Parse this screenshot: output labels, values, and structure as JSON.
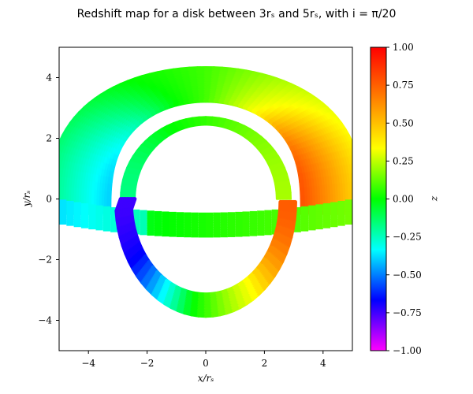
{
  "chart_data": {
    "type": "scatter",
    "title": "Redshift map for a disk between 3rₛ and 5rₛ, with i = π/20",
    "xlabel": "x/rₛ",
    "ylabel": "y/rₛ",
    "xlim": [
      -5,
      5
    ],
    "ylim": [
      -5,
      5
    ],
    "xticks": [
      -4,
      -2,
      0,
      2,
      4
    ],
    "yticks": [
      -4,
      -2,
      0,
      2,
      4
    ],
    "xtick_labels": [
      "−4",
      "−2",
      "0",
      "2",
      "4"
    ],
    "ytick_labels": [
      "−4",
      "−2",
      "0",
      "2",
      "4"
    ],
    "grid": false,
    "colorbar": {
      "label": "z",
      "range": [
        -1.0,
        1.0
      ],
      "ticks": [
        1.0,
        0.75,
        0.5,
        0.25,
        0.0,
        -0.25,
        -0.5,
        -0.75,
        -1.0
      ],
      "tick_labels": [
        "1.00",
        "0.75",
        "0.50",
        "0.25",
        "0.00",
        "−0.25",
        "−0.50",
        "−0.75",
        "−1.00"
      ],
      "colormap": "hsv",
      "stops": [
        {
          "value": -1.0,
          "color": "#ff00ff"
        },
        {
          "value": -0.5,
          "color": "#0000ff"
        },
        {
          "value": -0.25,
          "color": "#00ffff"
        },
        {
          "value": 0.0,
          "color": "#00ff00"
        },
        {
          "value": 0.5,
          "color": "#ffff00"
        },
        {
          "value": 1.0,
          "color": "#ff0000"
        }
      ]
    },
    "disk": {
      "inner_radius": 3,
      "outer_radius": 5,
      "inclination": "π/20",
      "direct_image": {
        "top_outer_y": 4.3,
        "top_inner_y": 3.25,
        "bottom_y": -0.45,
        "left_x": -5.3,
        "right_x": 5.3
      },
      "secondary_image": {
        "top_outer_y": 2.7,
        "top_inner_y": 2.45,
        "bottom_outer_y": -3.75,
        "bottom_inner_y": -3.05,
        "outer_half_width": 3.05,
        "inner_half_width": 2.55
      },
      "redshift_range": [
        -0.25,
        1.0
      ]
    }
  }
}
